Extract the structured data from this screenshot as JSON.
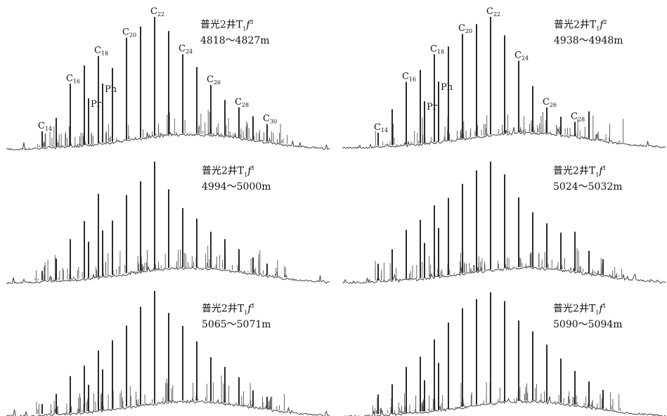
{
  "chart_data": [
    {
      "type": "line",
      "title_line1": "普光2井T₁f³",
      "title_line2": "4818～4827m",
      "well": "普光2井T",
      "sub": "1",
      "f": "f",
      "sup": "3",
      "depth": "4818～4827m",
      "peaks": [
        {
          "x": 14,
          "y": 0.12,
          "label": "C",
          "sub": "14"
        },
        {
          "x": 15,
          "y": 0.22
        },
        {
          "x": 16,
          "y": 0.48,
          "label": "C",
          "sub": "16"
        },
        {
          "x": 17,
          "y": 0.62
        },
        {
          "x": 17.3,
          "y": 0.36,
          "label": "Pr"
        },
        {
          "x": 18,
          "y": 0.69,
          "label": "C",
          "sub": "18"
        },
        {
          "x": 18.3,
          "y": 0.47,
          "label": "Ph"
        },
        {
          "x": 19,
          "y": 0.59
        },
        {
          "x": 20,
          "y": 0.83,
          "label": "C",
          "sub": "20"
        },
        {
          "x": 21,
          "y": 0.92
        },
        {
          "x": 22,
          "y": 1.0,
          "label": "C",
          "sub": "22"
        },
        {
          "x": 23,
          "y": 0.88
        },
        {
          "x": 24,
          "y": 0.68,
          "label": "C",
          "sub": "24"
        },
        {
          "x": 25,
          "y": 0.57
        },
        {
          "x": 26,
          "y": 0.42,
          "label": "C",
          "sub": "26"
        },
        {
          "x": 27,
          "y": 0.3
        },
        {
          "x": 28,
          "y": 0.25,
          "label": "C",
          "sub": "28"
        },
        {
          "x": 29,
          "y": 0.19
        },
        {
          "x": 30,
          "y": 0.14,
          "label": "C",
          "sub": "30"
        }
      ]
    },
    {
      "type": "line",
      "title_line1": "普光2井T₁f²",
      "title_line2": "4938～4948m",
      "well": "普光2井T",
      "sub": "1",
      "f": "f",
      "sup": "2",
      "depth": "4938～4948m",
      "peaks": [
        {
          "x": 14,
          "y": 0.1,
          "label": "C",
          "sub": "14"
        },
        {
          "x": 15,
          "y": 0.28
        },
        {
          "x": 16,
          "y": 0.49,
          "label": "C",
          "sub": "16"
        },
        {
          "x": 17,
          "y": 0.58
        },
        {
          "x": 17.3,
          "y": 0.33,
          "label": "Pr"
        },
        {
          "x": 18,
          "y": 0.7,
          "label": "C",
          "sub": "18"
        },
        {
          "x": 18.3,
          "y": 0.48,
          "label": "Ph"
        },
        {
          "x": 19,
          "y": 0.76
        },
        {
          "x": 20,
          "y": 0.86,
          "label": "C",
          "sub": "20"
        },
        {
          "x": 21,
          "y": 0.94
        },
        {
          "x": 22,
          "y": 1.0,
          "label": "C",
          "sub": "22"
        },
        {
          "x": 23,
          "y": 0.84
        },
        {
          "x": 24,
          "y": 0.62,
          "label": "C",
          "sub": "24"
        },
        {
          "x": 25,
          "y": 0.4
        },
        {
          "x": 26,
          "y": 0.22,
          "label": "C",
          "sub": "26"
        },
        {
          "x": 27,
          "y": 0.15
        },
        {
          "x": 28,
          "y": 0.12,
          "label": "C",
          "sub": "28"
        },
        {
          "x": 29,
          "y": 0.22
        }
      ]
    },
    {
      "type": "line",
      "title_line1": "普光2井T₁f¹",
      "title_line2": "4994～5000m",
      "well": "普光2井T",
      "sub": "1",
      "f": "f",
      "sup": "1",
      "depth": "4994～5000m",
      "peaks": [
        {
          "x": 14,
          "y": 0.08
        },
        {
          "x": 15,
          "y": 0.18
        },
        {
          "x": 16,
          "y": 0.34
        },
        {
          "x": 17,
          "y": 0.49
        },
        {
          "x": 17.3,
          "y": 0.31
        },
        {
          "x": 18,
          "y": 0.72
        },
        {
          "x": 18.3,
          "y": 0.4
        },
        {
          "x": 19,
          "y": 0.48
        },
        {
          "x": 20,
          "y": 0.7
        },
        {
          "x": 21,
          "y": 0.82
        },
        {
          "x": 22,
          "y": 1.0
        },
        {
          "x": 23,
          "y": 0.74
        },
        {
          "x": 24,
          "y": 0.56
        },
        {
          "x": 25,
          "y": 0.46
        },
        {
          "x": 26,
          "y": 0.34
        },
        {
          "x": 27,
          "y": 0.28
        },
        {
          "x": 28,
          "y": 0.2
        },
        {
          "x": 29,
          "y": 0.14
        },
        {
          "x": 30,
          "y": 0.1
        }
      ]
    },
    {
      "type": "line",
      "title_line1": "普光2井T₁f¹",
      "title_line2": "5024～5032m",
      "well": "普光2井T",
      "sub": "1",
      "f": "f",
      "sup": "1",
      "depth": "5024～5032m",
      "peaks": [
        {
          "x": 14,
          "y": 0.14
        },
        {
          "x": 15,
          "y": 0.26
        },
        {
          "x": 16,
          "y": 0.42
        },
        {
          "x": 17,
          "y": 0.5
        },
        {
          "x": 17.3,
          "y": 0.3
        },
        {
          "x": 18,
          "y": 0.62
        },
        {
          "x": 18.3,
          "y": 0.42
        },
        {
          "x": 19,
          "y": 0.68
        },
        {
          "x": 20,
          "y": 0.8
        },
        {
          "x": 21,
          "y": 0.92
        },
        {
          "x": 22,
          "y": 1.0
        },
        {
          "x": 23,
          "y": 0.88
        },
        {
          "x": 24,
          "y": 0.66
        },
        {
          "x": 25,
          "y": 0.52
        },
        {
          "x": 26,
          "y": 0.42
        },
        {
          "x": 27,
          "y": 0.34
        },
        {
          "x": 28,
          "y": 0.36
        },
        {
          "x": 29,
          "y": 0.2
        },
        {
          "x": 30,
          "y": 0.14
        }
      ]
    },
    {
      "type": "line",
      "title_line1": "普光2井T₁f¹",
      "title_line2": "5065～5071m",
      "well": "普光2井T",
      "sub": "1",
      "f": "f",
      "sup": "1",
      "depth": "5065～5071m",
      "peaks": [
        {
          "x": 14,
          "y": 0.08
        },
        {
          "x": 15,
          "y": 0.16
        },
        {
          "x": 16,
          "y": 0.3
        },
        {
          "x": 17,
          "y": 0.38
        },
        {
          "x": 17.3,
          "y": 0.22
        },
        {
          "x": 18,
          "y": 0.5
        },
        {
          "x": 18.3,
          "y": 0.34
        },
        {
          "x": 19,
          "y": 0.58
        },
        {
          "x": 20,
          "y": 0.7
        },
        {
          "x": 21,
          "y": 0.86
        },
        {
          "x": 22,
          "y": 1.0
        },
        {
          "x": 23,
          "y": 0.8
        },
        {
          "x": 24,
          "y": 0.68
        },
        {
          "x": 25,
          "y": 0.54
        },
        {
          "x": 26,
          "y": 0.4
        },
        {
          "x": 27,
          "y": 0.32
        },
        {
          "x": 28,
          "y": 0.24
        },
        {
          "x": 29,
          "y": 0.14
        },
        {
          "x": 30,
          "y": 0.1
        }
      ]
    },
    {
      "type": "line",
      "title_line1": "普光2井T₁f¹",
      "title_line2": "5090～5094m",
      "well": "普光2井T",
      "sub": "1",
      "f": "f",
      "sup": "1",
      "depth": "5090～5094m",
      "peaks": [
        {
          "x": 14,
          "y": 0.16
        },
        {
          "x": 15,
          "y": 0.24
        },
        {
          "x": 16,
          "y": 0.38
        },
        {
          "x": 17,
          "y": 0.46
        },
        {
          "x": 17.3,
          "y": 0.26
        },
        {
          "x": 18,
          "y": 0.6
        },
        {
          "x": 18.3,
          "y": 0.4
        },
        {
          "x": 19,
          "y": 0.74
        },
        {
          "x": 20,
          "y": 0.86
        },
        {
          "x": 21,
          "y": 0.94
        },
        {
          "x": 22,
          "y": 1.0
        },
        {
          "x": 23,
          "y": 0.92
        },
        {
          "x": 24,
          "y": 0.74
        },
        {
          "x": 25,
          "y": 0.64
        },
        {
          "x": 26,
          "y": 0.52
        },
        {
          "x": 27,
          "y": 0.4
        },
        {
          "x": 28,
          "y": 0.3
        },
        {
          "x": 29,
          "y": 0.22
        },
        {
          "x": 30,
          "y": 0.16
        }
      ]
    }
  ]
}
